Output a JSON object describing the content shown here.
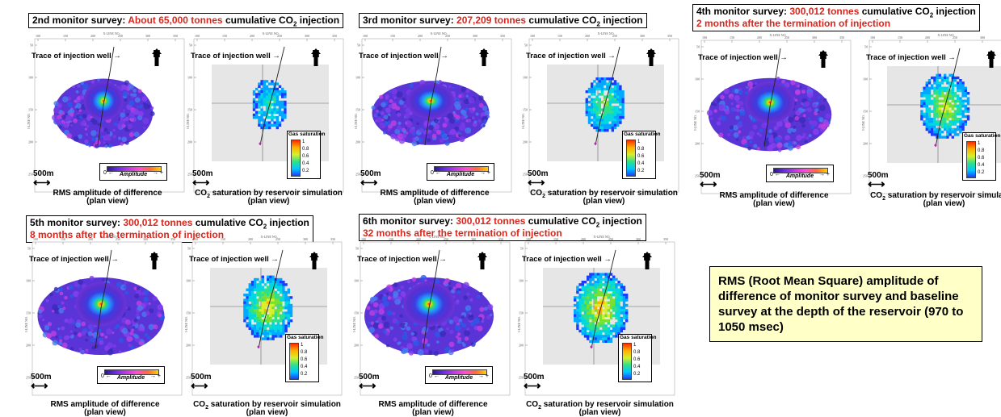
{
  "surveys": [
    {
      "line1_prefix": "2nd monitor survey: ",
      "line1_red": "About 65,000 tonnes",
      "line1_suffix": " cumulative CO",
      "line1_tail": " injection",
      "line2": ""
    },
    {
      "line1_prefix": "3rd monitor survey: ",
      "line1_red": "207,209 tonnes",
      "line1_suffix": " cumulative CO",
      "line1_tail": " injection",
      "line2": ""
    },
    {
      "line1_prefix": "4th monitor survey:  ",
      "line1_red": "300,012 tonnes",
      "line1_suffix": " cumulative CO",
      "line1_tail": " injection",
      "line2": "2 months after the termination of injection"
    },
    {
      "line1_prefix": "5th monitor survey: ",
      "line1_red": "300,012 tonnes",
      "line1_suffix": " cumulative CO",
      "line1_tail": " injection",
      "line2": "8 months after the termination of injection"
    },
    {
      "line1_prefix": "6th monitor survey: ",
      "line1_red": "300,012 tonnes",
      "line1_suffix": " cumulative CO",
      "line1_tail": " injection",
      "line2": "32 months after the termination of injection"
    }
  ],
  "labels": {
    "trace": "Trace of injection well →",
    "north": "N",
    "scale": "500m",
    "scale_arrow": "⟷",
    "rms_caption_1": "RMS amplitude of difference",
    "rms_caption_2": "(plan view)",
    "sim_caption_pre": "CO",
    "sim_caption_sub": "2",
    "sim_caption_post": " saturation by reservoir simulation",
    "sim_caption_2": "(plan view)",
    "amplitude": "Amplitude",
    "amp_lo": "0 ←",
    "amp_hi": "→ +",
    "gas_saturation": "Gas saturation",
    "gas_ticks": [
      "1",
      "0.8",
      "0.6",
      "0.4",
      "0.2"
    ],
    "xline_label": "X-LINE NO.",
    "iline_label": "I-LINE NO.",
    "x_ticks": [
      "100",
      "150",
      "200",
      "250",
      "300",
      "350"
    ],
    "y_ticks": [
      "50",
      "100",
      "150",
      "200",
      "250"
    ],
    "co2_sub": "2"
  },
  "note": "RMS (Root Mean Square) amplitude of difference of monitor survey and baseline survey at the depth of the reservoir (970 to 1050 msec)",
  "colors": {
    "red": "#d9261c",
    "note_bg": "#ffffc8"
  }
}
